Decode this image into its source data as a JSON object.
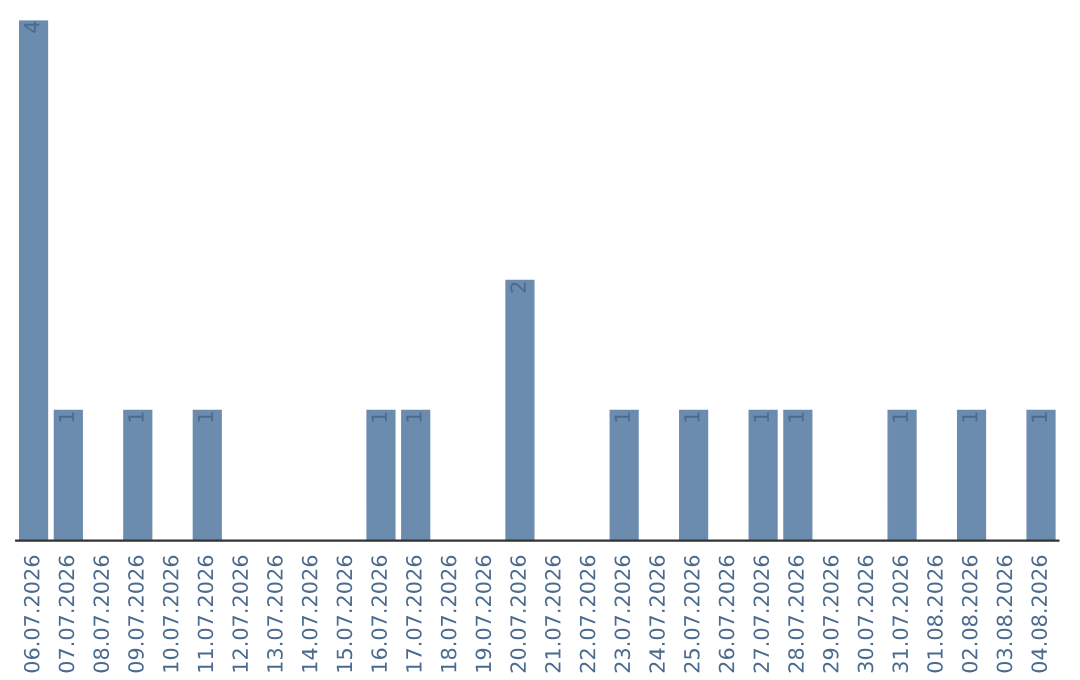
{
  "chart_data": {
    "type": "bar",
    "categories": [
      "06.07.2026",
      "07.07.2026",
      "08.07.2026",
      "09.07.2026",
      "10.07.2026",
      "11.07.2026",
      "12.07.2026",
      "13.07.2026",
      "14.07.2026",
      "15.07.2026",
      "16.07.2026",
      "17.07.2026",
      "18.07.2026",
      "19.07.2026",
      "20.07.2026",
      "21.07.2026",
      "22.07.2026",
      "23.07.2026",
      "24.07.2026",
      "25.07.2026",
      "26.07.2026",
      "27.07.2026",
      "28.07.2026",
      "29.07.2026",
      "30.07.2026",
      "31.07.2026",
      "01.08.2026",
      "02.08.2026",
      "03.08.2026",
      "04.08.2026"
    ],
    "values": [
      4,
      1,
      0,
      1,
      0,
      1,
      0,
      0,
      0,
      0,
      1,
      1,
      0,
      0,
      2,
      0,
      0,
      1,
      0,
      1,
      0,
      1,
      1,
      0,
      0,
      1,
      0,
      1,
      0,
      1
    ],
    "value_labels": [
      "4",
      "1",
      null,
      "1",
      null,
      "1",
      null,
      null,
      null,
      null,
      "1",
      "1",
      null,
      null,
      "2",
      null,
      null,
      "1",
      null,
      "1",
      null,
      "1",
      "1",
      null,
      null,
      "1",
      null,
      "1",
      null,
      "1"
    ],
    "color": "#6b8cae",
    "grid": false,
    "legend": false
  }
}
